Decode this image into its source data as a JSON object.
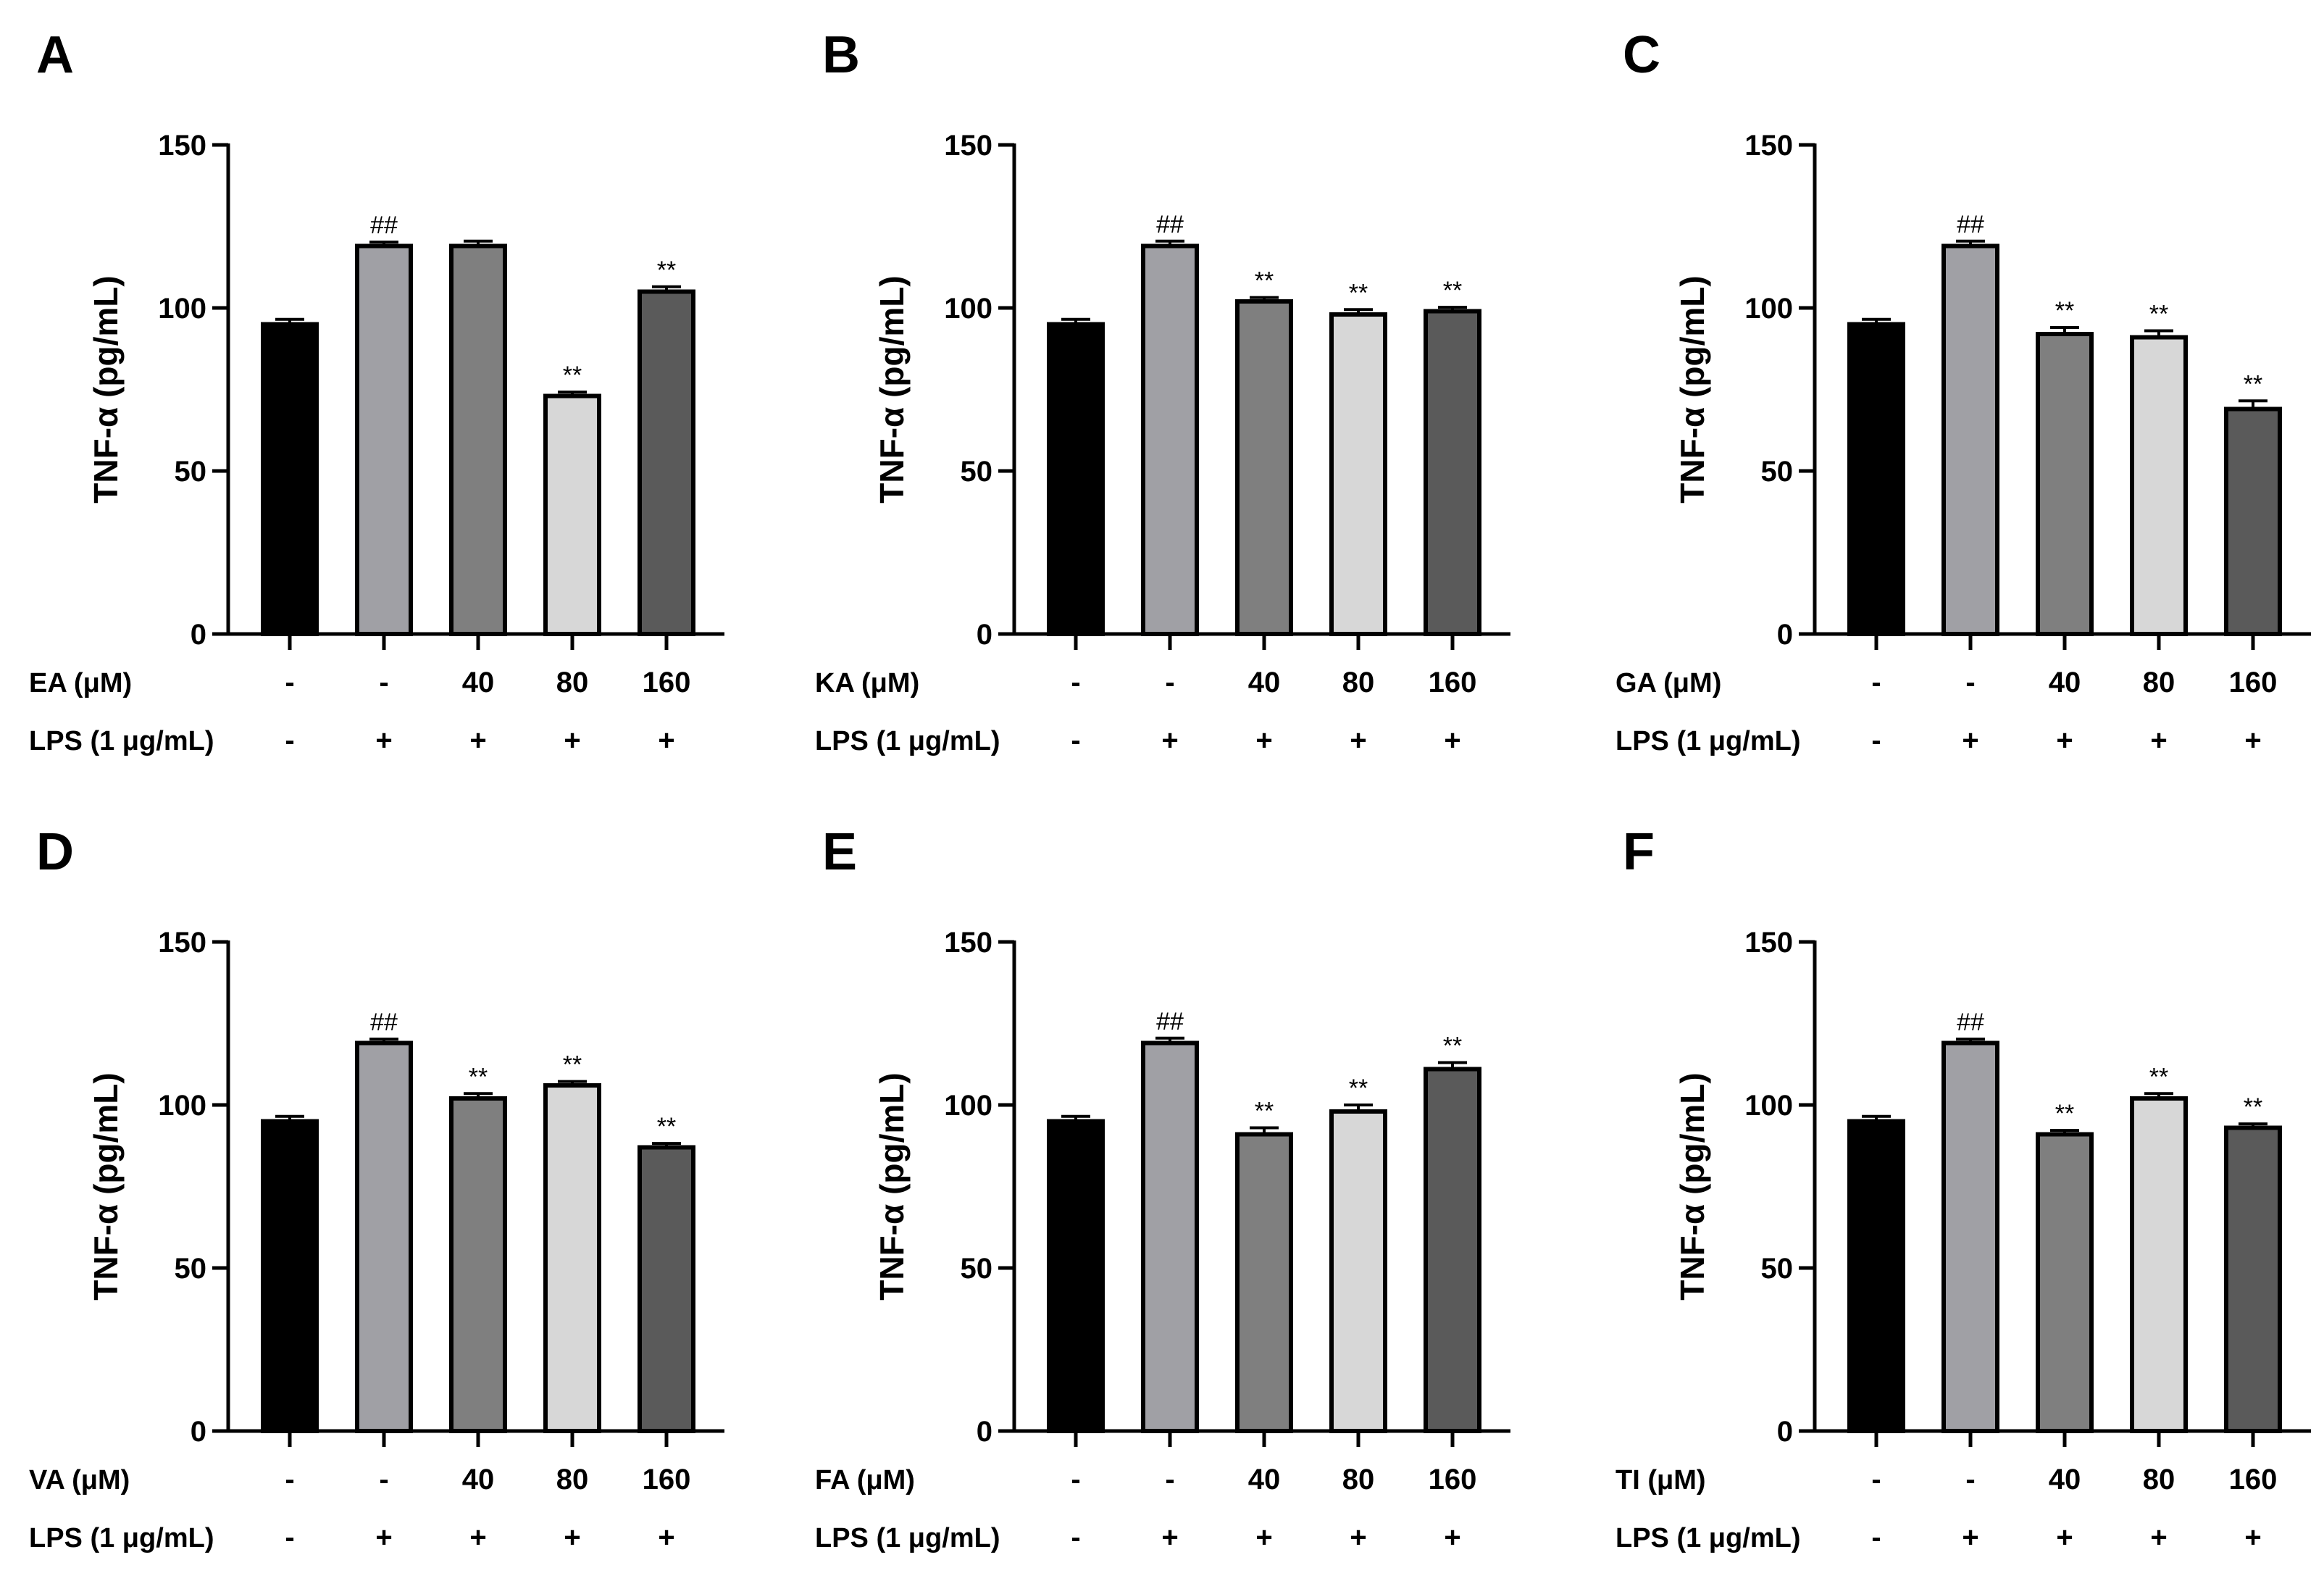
{
  "figure": {
    "colors": {
      "axis": "#000000",
      "bar_edge": "#000000"
    },
    "panels": [
      {
        "letter": "A",
        "chart_data": {
          "type": "bar",
          "ylabel": "TNF-α (pg/mL)",
          "ylim": [
            0,
            150
          ],
          "yticks": [
            "0",
            "50",
            "100",
            "150"
          ],
          "values": [
            95,
            119,
            119,
            73,
            105
          ],
          "errors": [
            1.5,
            1.2,
            1.5,
            1.2,
            1.5
          ],
          "colors": [
            "#000000",
            "#a0a0a5",
            "#7f7f7f",
            "#d7d7d7",
            "#5a5a5a"
          ],
          "significance": [
            "",
            "##",
            "",
            "**",
            "**"
          ],
          "rows": [
            {
              "label": "EA (μM)",
              "values": [
                "-",
                "-",
                "40",
                "80",
                "160"
              ]
            },
            {
              "label": "LPS (1 μg/mL)",
              "values": [
                "-",
                "+",
                "+",
                "+",
                "+"
              ]
            }
          ]
        }
      },
      {
        "letter": "B",
        "chart_data": {
          "type": "bar",
          "ylabel": "TNF-α (pg/mL)",
          "ylim": [
            0,
            150
          ],
          "yticks": [
            "0",
            "50",
            "100",
            "150"
          ],
          "values": [
            95,
            119,
            102,
            98,
            99
          ],
          "errors": [
            1.5,
            1.5,
            1.2,
            1.5,
            1.2
          ],
          "colors": [
            "#000000",
            "#a0a0a5",
            "#7f7f7f",
            "#d7d7d7",
            "#5a5a5a"
          ],
          "significance": [
            "",
            "##",
            "**",
            "**",
            "**"
          ],
          "rows": [
            {
              "label": "KA (μM)",
              "values": [
                "-",
                "-",
                "40",
                "80",
                "160"
              ]
            },
            {
              "label": "LPS (1 μg/mL)",
              "values": [
                "-",
                "+",
                "+",
                "+",
                "+"
              ]
            }
          ]
        }
      },
      {
        "letter": "C",
        "chart_data": {
          "type": "bar",
          "ylabel": "TNF-α (pg/mL)",
          "ylim": [
            0,
            150
          ],
          "yticks": [
            "0",
            "50",
            "100",
            "150"
          ],
          "values": [
            95,
            119,
            92,
            91,
            69
          ],
          "errors": [
            1.5,
            1.5,
            2.0,
            2.0,
            2.5
          ],
          "colors": [
            "#000000",
            "#a0a0a5",
            "#7f7f7f",
            "#d7d7d7",
            "#5a5a5a"
          ],
          "significance": [
            "",
            "##",
            "**",
            "**",
            "**"
          ],
          "rows": [
            {
              "label": "GA (μM)",
              "values": [
                "-",
                "-",
                "40",
                "80",
                "160"
              ]
            },
            {
              "label": "LPS (1 μg/mL)",
              "values": [
                "-",
                "+",
                "+",
                "+",
                "+"
              ]
            }
          ]
        }
      },
      {
        "letter": "D",
        "chart_data": {
          "type": "bar",
          "ylabel": "TNF-α (pg/mL)",
          "ylim": [
            0,
            150
          ],
          "yticks": [
            "0",
            "50",
            "100",
            "150"
          ],
          "values": [
            95,
            119,
            102,
            106,
            87
          ],
          "errors": [
            1.5,
            1.2,
            1.5,
            1.2,
            1.2
          ],
          "colors": [
            "#000000",
            "#a0a0a5",
            "#7f7f7f",
            "#d7d7d7",
            "#5a5a5a"
          ],
          "significance": [
            "",
            "##",
            "**",
            "**",
            "**"
          ],
          "rows": [
            {
              "label": "VA (μM)",
              "values": [
                "-",
                "-",
                "40",
                "80",
                "160"
              ]
            },
            {
              "label": "LPS (1 μg/mL)",
              "values": [
                "-",
                "+",
                "+",
                "+",
                "+"
              ]
            }
          ]
        }
      },
      {
        "letter": "E",
        "chart_data": {
          "type": "bar",
          "ylabel": "TNF-α (pg/mL)",
          "ylim": [
            0,
            150
          ],
          "yticks": [
            "0",
            "50",
            "100",
            "150"
          ],
          "values": [
            95,
            119,
            91,
            98,
            111
          ],
          "errors": [
            1.5,
            1.5,
            2.0,
            2.0,
            2.0
          ],
          "colors": [
            "#000000",
            "#a0a0a5",
            "#7f7f7f",
            "#d7d7d7",
            "#5a5a5a"
          ],
          "significance": [
            "",
            "##",
            "**",
            "**",
            "**"
          ],
          "rows": [
            {
              "label": "FA (μM)",
              "values": [
                "-",
                "-",
                "40",
                "80",
                "160"
              ]
            },
            {
              "label": "LPS (1 μg/mL)",
              "values": [
                "-",
                "+",
                "+",
                "+",
                "+"
              ]
            }
          ]
        }
      },
      {
        "letter": "F",
        "chart_data": {
          "type": "bar",
          "ylabel": "TNF-α (pg/mL)",
          "ylim": [
            0,
            150
          ],
          "yticks": [
            "0",
            "50",
            "100",
            "150"
          ],
          "values": [
            95,
            119,
            91,
            102,
            93
          ],
          "errors": [
            1.5,
            1.2,
            1.2,
            1.5,
            1.2
          ],
          "colors": [
            "#000000",
            "#a0a0a5",
            "#7f7f7f",
            "#d7d7d7",
            "#5a5a5a"
          ],
          "significance": [
            "",
            "##",
            "**",
            "**",
            "**"
          ],
          "rows": [
            {
              "label": "TI (μM)",
              "values": [
                "-",
                "-",
                "40",
                "80",
                "160"
              ]
            },
            {
              "label": "LPS (1 μg/mL)",
              "values": [
                "-",
                "+",
                "+",
                "+",
                "+"
              ]
            }
          ]
        }
      }
    ]
  }
}
